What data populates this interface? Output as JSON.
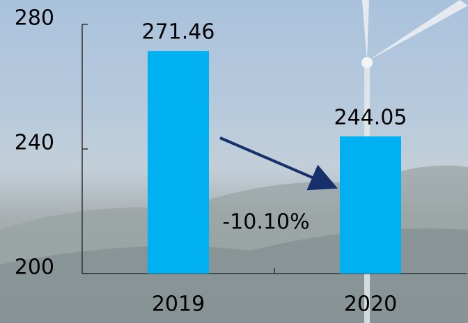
{
  "chart_data": {
    "type": "bar",
    "categories": [
      "2019",
      "2020"
    ],
    "values": [
      271.46,
      244.05
    ],
    "value_labels": [
      "271.46",
      "244.05"
    ],
    "color": "#00b0f0",
    "ylim": [
      200,
      280
    ],
    "yticks": [
      200,
      240,
      280
    ],
    "grid": false,
    "annotation": "-10.10%"
  }
}
